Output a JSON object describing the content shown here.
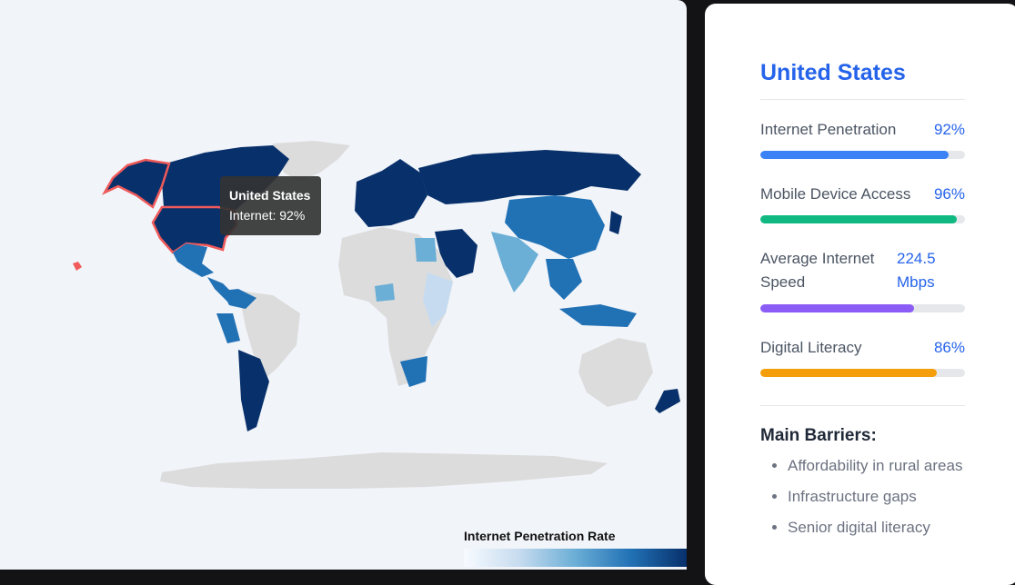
{
  "tooltip": {
    "country": "United States",
    "line": "Internet: 92%"
  },
  "legend": {
    "title": "Internet Penetration Rate"
  },
  "panel": {
    "country": "United States",
    "metrics": [
      {
        "label": "Internet Penetration",
        "value": "92%",
        "fraction": 0.92,
        "color": "#3b82f6"
      },
      {
        "label": "Mobile Device Access",
        "value": "96%",
        "fraction": 0.96,
        "color": "#10b981"
      },
      {
        "label": "Average Internet Speed",
        "value": "224.5 Mbps",
        "fraction": 0.75,
        "color": "#8b5cf6"
      },
      {
        "label": "Digital Literacy",
        "value": "86%",
        "fraction": 0.86,
        "color": "#f59e0b"
      }
    ],
    "barriers_title": "Main Barriers:",
    "barriers": [
      "Affordability in rural areas",
      "Infrastructure gaps",
      "Senior digital literacy"
    ]
  },
  "map_colors": {
    "highlight": "#f05a5a",
    "land_nodata": "#dcdcdc",
    "scale": [
      "#f7fbff",
      "#c6dbef",
      "#6baed6",
      "#2171b5",
      "#08306b"
    ]
  }
}
